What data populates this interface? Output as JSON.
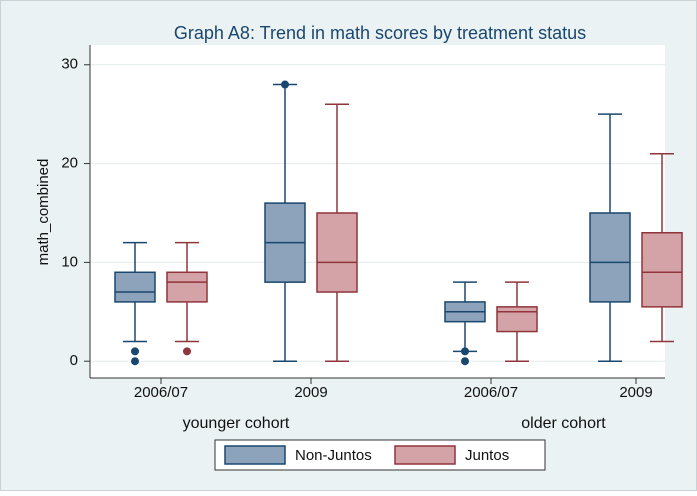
{
  "chart_data": {
    "type": "box",
    "title": "Graph A8: Trend in math scores by treatment status",
    "y_label": "math_combined",
    "categories": [
      "2006/07",
      "2009",
      "2006/07",
      "2009"
    ],
    "groups": [
      "younger cohort",
      "older cohort"
    ],
    "ylim": [
      -1.7,
      32
    ],
    "yticks": [
      0,
      10,
      20,
      30
    ],
    "grid": true,
    "series": [
      {
        "name": "Non-Juntos",
        "color": "#1a476f",
        "fill": "#8ca3bb",
        "min": [
          2,
          0,
          1,
          0
        ],
        "q1": [
          6,
          8,
          4,
          6
        ],
        "median": [
          7,
          12,
          5,
          10
        ],
        "q3": [
          9,
          16,
          6,
          15
        ],
        "max": [
          12,
          28,
          8,
          25
        ],
        "outliers": [
          [
            1,
            0
          ],
          [
            28
          ],
          [
            1,
            0
          ],
          []
        ]
      },
      {
        "name": "Juntos",
        "color": "#90353b",
        "fill": "#d4a3a7",
        "min": [
          2,
          0,
          0,
          2
        ],
        "q1": [
          6,
          7,
          3,
          5.5
        ],
        "median": [
          8,
          10,
          5,
          9
        ],
        "q3": [
          9,
          15,
          5.5,
          13
        ],
        "max": [
          12,
          26,
          8,
          21
        ],
        "outliers": [
          [
            1
          ],
          [],
          [],
          []
        ]
      }
    ]
  }
}
